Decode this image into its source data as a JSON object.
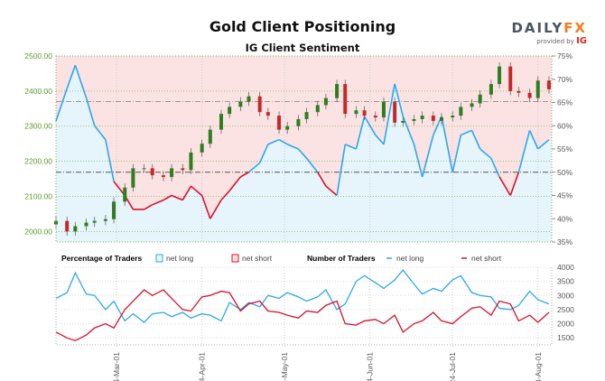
{
  "header": {
    "title": "Gold Client Positioning",
    "subtitle": "IG Client Sentiment",
    "logo_main": "DAILY",
    "logo_accent": "FX",
    "logo_sub": "provided by",
    "logo_ig": "IG"
  },
  "colors": {
    "long": "#2ea7ea",
    "short": "#d8102a",
    "up": "#2e7d1f",
    "down": "#c62828",
    "long_fill": "#e6f4fc",
    "short_fill": "#fbe3e4",
    "price_axis": "#5a9a2a"
  },
  "chart_data": [
    {
      "type": "candlestick+line",
      "title": "IG Client Sentiment",
      "x_range": [
        "2024-02-08",
        "2024-08-06"
      ],
      "left_axis": {
        "ylim": [
          1970,
          2500
        ],
        "ticks": [
          2000,
          2100,
          2200,
          2300,
          2400,
          2500
        ],
        "tick_labels": [
          "2000.00",
          "2100.00",
          "2200.00",
          "2300.00",
          "2400.00",
          "2500.00"
        ]
      },
      "right_axis": {
        "ylim": [
          35,
          75
        ],
        "ticks": [
          35,
          40,
          45,
          50,
          55,
          60,
          65,
          70,
          75
        ],
        "tick_labels": [
          "35%",
          "40%",
          "45%",
          "50%",
          "55%",
          "60%",
          "65%",
          "70%",
          "75%"
        ]
      },
      "reference_lines": {
        "price": 2370,
        "percent": 50
      },
      "dates": [
        "2024-02-08",
        "2024-02-12",
        "2024-02-15",
        "2024-02-19",
        "2024-02-22",
        "2024-02-26",
        "2024-02-29",
        "2024-03-04",
        "2024-03-07",
        "2024-03-11",
        "2024-03-14",
        "2024-03-18",
        "2024-03-21",
        "2024-03-25",
        "2024-03-28",
        "2024-04-01",
        "2024-04-04",
        "2024-04-08",
        "2024-04-11",
        "2024-04-15",
        "2024-04-18",
        "2024-04-22",
        "2024-04-25",
        "2024-04-29",
        "2024-05-02",
        "2024-05-06",
        "2024-05-09",
        "2024-05-13",
        "2024-05-16",
        "2024-05-20",
        "2024-05-23",
        "2024-05-27",
        "2024-05-30",
        "2024-06-03",
        "2024-06-06",
        "2024-06-10",
        "2024-06-13",
        "2024-06-17",
        "2024-06-20",
        "2024-06-24",
        "2024-06-27",
        "2024-07-01",
        "2024-07-04",
        "2024-07-08",
        "2024-07-11",
        "2024-07-15",
        "2024-07-18",
        "2024-07-22",
        "2024-07-25",
        "2024-07-29",
        "2024-08-01",
        "2024-08-05"
      ],
      "price_close": [
        2030,
        2000,
        2015,
        2025,
        2030,
        2035,
        2085,
        2125,
        2180,
        2180,
        2160,
        2155,
        2180,
        2175,
        2225,
        2250,
        2290,
        2335,
        2355,
        2370,
        2385,
        2340,
        2330,
        2290,
        2300,
        2320,
        2340,
        2360,
        2380,
        2420,
        2335,
        2345,
        2330,
        2325,
        2370,
        2310,
        2315,
        2320,
        2330,
        2315,
        2325,
        2330,
        2355,
        2365,
        2390,
        2420,
        2470,
        2400,
        2395,
        2380,
        2430,
        2405
      ],
      "net_long_pct": [
        61,
        68,
        73,
        66,
        60,
        57,
        48,
        45,
        42,
        42,
        43,
        44,
        45,
        44,
        47,
        45,
        40,
        44,
        46,
        49,
        50,
        52,
        56,
        57,
        56,
        55,
        53,
        50,
        47,
        45,
        56,
        55,
        62,
        58,
        56,
        69,
        62,
        56,
        49,
        58,
        62,
        50,
        58,
        59,
        55,
        53,
        49,
        45,
        50,
        59,
        55,
        57
      ]
    },
    {
      "type": "line",
      "title": "",
      "ylim": [
        1250,
        4000
      ],
      "ticks": [
        1500,
        2000,
        2500,
        3000,
        3500,
        4000
      ],
      "tick_labels": [
        "1500",
        "2000",
        "2500",
        "3000",
        "3500",
        "4000"
      ],
      "x_tick_labels": [
        "2024-Mar-01",
        "2024-Apr-01",
        "2024-May-01",
        "2024-Jun-01",
        "2024-Jul-01",
        "2024-Aug-01"
      ],
      "x_ticks": [
        "2024-03-01",
        "2024-04-01",
        "2024-05-01",
        "2024-06-01",
        "2024-07-01",
        "2024-08-01"
      ],
      "series": [
        {
          "name": "net long",
          "values": [
            2900,
            3100,
            3800,
            3050,
            3000,
            2500,
            2800,
            2100,
            2350,
            2050,
            2350,
            2400,
            2250,
            2400,
            2200,
            2350,
            2300,
            2100,
            2750,
            2500,
            2750,
            2600,
            3000,
            2900,
            3100,
            2950,
            2800,
            2950,
            3200,
            2500,
            2700,
            3500,
            3700,
            3450,
            3250,
            3550,
            3900,
            3400,
            3050,
            3250,
            3150,
            3550,
            3700,
            3100,
            3000,
            2950,
            2550,
            2500,
            2650,
            3150,
            2850,
            2700
          ]
        },
        {
          "name": "net short",
          "values": [
            1700,
            1500,
            1400,
            1600,
            1850,
            2000,
            1850,
            2500,
            2800,
            3200,
            3000,
            3200,
            2900,
            2500,
            2450,
            2950,
            3000,
            3150,
            3100,
            2450,
            2700,
            2800,
            2450,
            2400,
            2300,
            2200,
            2450,
            2400,
            2650,
            2800,
            2000,
            1950,
            2100,
            2150,
            2000,
            2300,
            1700,
            2000,
            2100,
            2400,
            2100,
            2000,
            2250,
            2550,
            2600,
            2300,
            2800,
            2700,
            2100,
            2300,
            2050,
            2400
          ]
        }
      ]
    }
  ],
  "legend": {
    "pct_title": "Percentage of Traders",
    "pct_long": "net long",
    "pct_short": "net short",
    "num_title": "Number of Traders",
    "num_long": "net long",
    "num_short": "net short"
  }
}
